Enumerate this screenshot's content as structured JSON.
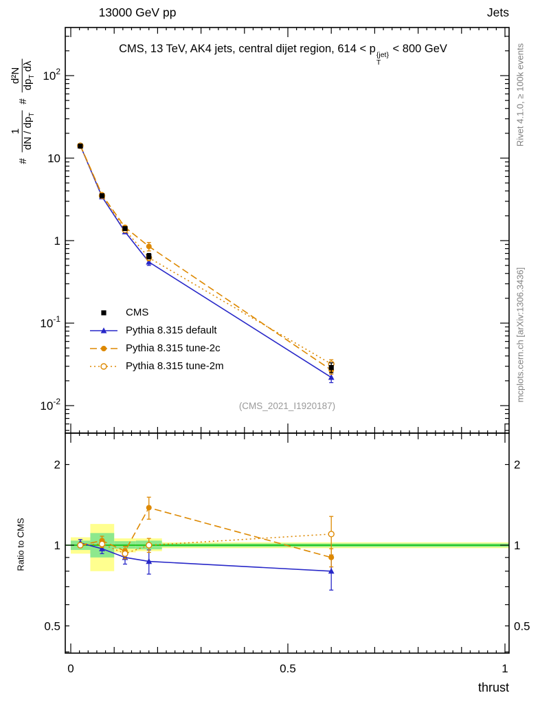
{
  "colors": {
    "cms": "#000000",
    "pythia_default": "#2727c8",
    "pythia_tunes": "#dd8800",
    "green_band": "#8de88d",
    "green_line": "#00bb00",
    "yellow_band": "#ffff8f",
    "watermark": "#9a9a9a",
    "side_note": "#808080",
    "frame": "#000000"
  },
  "header": {
    "left": "13000 GeV pp",
    "right": "Jets"
  },
  "title": {
    "prefix": "CMS, 13 TeV, AK4 jets, central dijet region, 614 < p",
    "sup": "{jet}",
    "sub": "T",
    "suffix": " < 800 GeV"
  },
  "ylabel_main": {
    "hash1": "#",
    "frac1_num": "1",
    "frac1_den_main": "dN / dp",
    "frac1_den_sub": "T",
    "hash2": "#",
    "frac2_num": "d²N",
    "frac2_den_a": "dp",
    "frac2_den_a_sub": "T",
    "frac2_den_b": " dλ"
  },
  "axes": {
    "x_label": "thrust",
    "x_ticks": [
      {
        "v": 0,
        "label": "0"
      },
      {
        "v": 0.5,
        "label": "0.5"
      },
      {
        "v": 1,
        "label": "1"
      }
    ],
    "ratio_y_label": "Ratio to CMS"
  },
  "side_notes": {
    "right_top": "Rivet 4.1.0, ≥ 100k events",
    "right_bottom": "mcplots.cern.ch [arXiv:1306.3436]"
  },
  "watermark": "(CMS_2021_I1920187)",
  "legend": [
    {
      "label": "CMS",
      "marker": "square",
      "color": "#000000",
      "line": "none"
    },
    {
      "label": "Pythia 8.315 default",
      "marker": "triangle",
      "color": "#2727c8",
      "line": "solid"
    },
    {
      "label": "Pythia 8.315 tune-2c",
      "marker": "circle",
      "color": "#dd8800",
      "line": "dashed"
    },
    {
      "label": "Pythia 8.315 tune-2m",
      "marker": "circle-open",
      "color": "#dd8800",
      "line": "dotted"
    }
  ],
  "chart_data": [
    {
      "type": "line",
      "panel": "main",
      "yscale": "log",
      "xlim": [
        -0.013,
        1.01
      ],
      "ylim": [
        0.0047,
        390
      ],
      "x": [
        0.022,
        0.072,
        0.125,
        0.18,
        0.6
      ],
      "yticks": [
        {
          "v": 100,
          "base": "10",
          "exp": "2"
        },
        {
          "v": 10,
          "base": "10",
          "exp": ""
        },
        {
          "v": 1,
          "base": "1",
          "exp": ""
        },
        {
          "v": 0.1,
          "base": "10",
          "exp": "-1"
        },
        {
          "v": 0.01,
          "base": "10",
          "exp": "-2"
        }
      ],
      "series": [
        {
          "name": "Pythia 8.315 default",
          "marker": "triangle",
          "color": "#2727c8",
          "line": "solid",
          "values": [
            14.2,
            3.4,
            1.28,
            0.55,
            0.022
          ],
          "yerr": [
            0.3,
            0.09,
            0.05,
            0.05,
            0.003
          ]
        },
        {
          "name": "Pythia 8.315 tune-2c",
          "marker": "circle",
          "color": "#dd8800",
          "line": "dashed",
          "values": [
            14.3,
            3.6,
            1.45,
            0.85,
            0.027
          ],
          "yerr": [
            0.3,
            0.09,
            0.05,
            0.1,
            0.003
          ]
        },
        {
          "name": "Pythia 8.315 tune-2m",
          "marker": "circle-open",
          "color": "#dd8800",
          "line": "dotted",
          "values": [
            14.1,
            3.5,
            1.35,
            0.62,
            0.032
          ],
          "yerr": [
            0.3,
            0.09,
            0.05,
            0.05,
            0.004
          ]
        },
        {
          "name": "CMS",
          "marker": "square",
          "color": "#000000",
          "line": "none",
          "values": [
            14.0,
            3.5,
            1.4,
            0.65,
            0.029
          ],
          "yerr": [
            0.6,
            0.15,
            0.07,
            0.05,
            0.004
          ]
        }
      ]
    },
    {
      "type": "line",
      "panel": "ratio",
      "yscale": "log",
      "ylim": [
        0.396,
        2.62
      ],
      "x": [
        0.022,
        0.072,
        0.125,
        0.18,
        0.6
      ],
      "yticks": [
        {
          "v": 2,
          "label": "2"
        },
        {
          "v": 1,
          "label": "1"
        },
        {
          "v": 0.5,
          "label": "0.5"
        }
      ],
      "reference_line": 1,
      "bands": [
        {
          "x0": 0.0,
          "x1": 0.045,
          "yellow": [
            0.93,
            1.07
          ],
          "green": [
            0.96,
            1.04
          ]
        },
        {
          "x0": 0.045,
          "x1": 0.1,
          "yellow": [
            0.8,
            1.2
          ],
          "green": [
            0.9,
            1.11
          ]
        },
        {
          "x0": 0.1,
          "x1": 0.15,
          "yellow": [
            0.94,
            1.06
          ],
          "green": [
            0.97,
            1.035
          ]
        },
        {
          "x0": 0.15,
          "x1": 0.21,
          "yellow": [
            0.95,
            1.06
          ],
          "green": [
            0.965,
            1.04
          ]
        },
        {
          "x0": 0.21,
          "x1": 1.01,
          "yellow": [
            0.975,
            1.025
          ],
          "green": [
            0.985,
            1.015
          ]
        }
      ],
      "series": [
        {
          "name": "Pythia 8.315 default",
          "marker": "triangle",
          "color": "#2727c8",
          "line": "solid",
          "values": [
            1.02,
            0.97,
            0.9,
            0.87,
            0.8
          ],
          "yerr": [
            0.03,
            0.04,
            0.05,
            0.09,
            0.12
          ]
        },
        {
          "name": "Pythia 8.315 tune-2c",
          "marker": "circle",
          "color": "#dd8800",
          "line": "dashed",
          "values": [
            1.0,
            1.04,
            0.95,
            1.38,
            0.9
          ],
          "yerr": [
            0.02,
            0.04,
            0.04,
            0.13,
            0.07
          ]
        },
        {
          "name": "Pythia 8.315 tune-2m",
          "marker": "circle-open",
          "color": "#dd8800",
          "line": "dotted",
          "values": [
            1.0,
            1.01,
            0.93,
            1.0,
            1.1
          ],
          "yerr": [
            0.02,
            0.03,
            0.04,
            0.06,
            0.18
          ]
        }
      ]
    }
  ]
}
